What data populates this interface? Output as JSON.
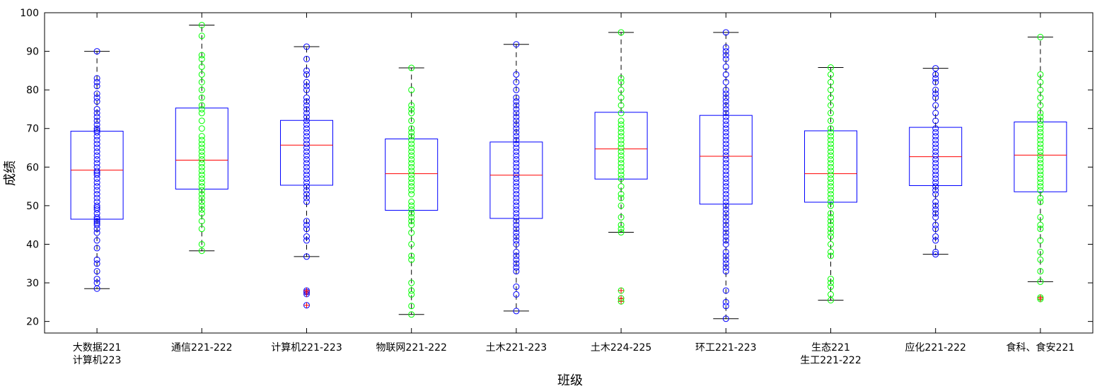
{
  "chart_data": {
    "type": "box",
    "xlabel": "班级",
    "ylabel": "成绩",
    "ylim": [
      17,
      100
    ],
    "yticks": [
      20,
      30,
      40,
      50,
      60,
      70,
      80,
      90,
      100
    ],
    "grid": false,
    "legend": "none",
    "colors": {
      "box": "#0000ff",
      "median": "#ff0000",
      "whisker": "#000000",
      "dot_a": "#0000ff",
      "dot_b": "#00ff00",
      "outlier": "#ff0000"
    },
    "categories": [
      {
        "label_lines": [
          "大数据221",
          "计算机223"
        ],
        "stats": {
          "min": 28.5,
          "q1": 46.5,
          "median": 59.2,
          "q3": 69.3,
          "max": 90
        },
        "outliers": [],
        "color": "blue",
        "scores": [
          28.5,
          30,
          31,
          33,
          35,
          36,
          39,
          41,
          43,
          44,
          45,
          45.5,
          46,
          46.5,
          47,
          48,
          49,
          49.5,
          50,
          51,
          52,
          53,
          54,
          55,
          56,
          57,
          58,
          58.5,
          59,
          60,
          61,
          62,
          63,
          64,
          65,
          66,
          67,
          68,
          69,
          69.5,
          70,
          71,
          72,
          73,
          74,
          75,
          77,
          78,
          79,
          81,
          82,
          83,
          90
        ]
      },
      {
        "label_lines": [
          "通信221-222"
        ],
        "stats": {
          "min": 38.3,
          "q1": 54.3,
          "median": 61.8,
          "q3": 75.3,
          "max": 96.8
        },
        "outliers": [],
        "color": "green",
        "scores": [
          38.3,
          40,
          44,
          46,
          48,
          49,
          50,
          51,
          52,
          53,
          54,
          55,
          56,
          57,
          58,
          59,
          60,
          61,
          62,
          63,
          64,
          65,
          66,
          67,
          68,
          70,
          72,
          74,
          75,
          76,
          78,
          80,
          82,
          84,
          86,
          88,
          89,
          94,
          96.8
        ]
      },
      {
        "label_lines": [
          "计算机221-223"
        ],
        "stats": {
          "min": 36.8,
          "q1": 55.3,
          "median": 65.7,
          "q3": 72.1,
          "max": 91.2
        },
        "outliers": [
          24.2,
          27.1,
          27.6,
          28
        ],
        "color": "blue",
        "scores": [
          36.8,
          41,
          42,
          44,
          45,
          46,
          51,
          52,
          53,
          54,
          55,
          56,
          57,
          58,
          59,
          60,
          61,
          62,
          63,
          64,
          65,
          66,
          67,
          68,
          69,
          70,
          71,
          72,
          73,
          74,
          75,
          76,
          77,
          78,
          80,
          81,
          82,
          84,
          85,
          88,
          91.2
        ]
      },
      {
        "label_lines": [
          "物联网221-222"
        ],
        "stats": {
          "min": 21.8,
          "q1": 48.8,
          "median": 58.3,
          "q3": 67.3,
          "max": 85.7
        },
        "outliers": [],
        "color": "green",
        "scores": [
          21.8,
          24,
          27,
          28,
          30,
          36,
          37,
          40,
          43,
          45,
          46,
          47,
          48,
          49,
          50,
          51,
          53,
          54,
          55,
          56,
          57,
          58,
          59,
          60,
          61,
          62,
          63,
          64,
          65,
          66,
          67,
          68,
          69,
          70,
          72,
          74,
          75,
          76,
          80,
          85.7
        ]
      },
      {
        "label_lines": [
          "土木221-223"
        ],
        "stats": {
          "min": 22.7,
          "q1": 46.7,
          "median": 57.9,
          "q3": 66.5,
          "max": 91.8
        },
        "outliers": [],
        "color": "blue",
        "scores": [
          22.7,
          27,
          29,
          33,
          34,
          35,
          36,
          37,
          38,
          40,
          41,
          42,
          43,
          44,
          45,
          46,
          47,
          48,
          49,
          50,
          51,
          52,
          53,
          54,
          55,
          56,
          57,
          58,
          59,
          60,
          61,
          62,
          63,
          64,
          65,
          66,
          67,
          68,
          69,
          70,
          71,
          72,
          73,
          74,
          75,
          76,
          77,
          78,
          80,
          82,
          84,
          91.8
        ]
      },
      {
        "label_lines": [
          "土木224-225"
        ],
        "stats": {
          "min": 43.1,
          "q1": 56.9,
          "median": 64.7,
          "q3": 74.2,
          "max": 94.9
        },
        "outliers": [
          25.2,
          26,
          28
        ],
        "color": "green",
        "scores": [
          43.1,
          44,
          45,
          47,
          50,
          52,
          53,
          55,
          57,
          58,
          59,
          60,
          61,
          62,
          63,
          64,
          65,
          66,
          67,
          68,
          69,
          70,
          71,
          72,
          74,
          76,
          78,
          80,
          82,
          83,
          94.9
        ]
      },
      {
        "label_lines": [
          "环工221-223"
        ],
        "stats": {
          "min": 20.7,
          "q1": 50.4,
          "median": 62.8,
          "q3": 73.4,
          "max": 94.9
        },
        "outliers": [],
        "color": "blue",
        "scores": [
          20.7,
          24,
          25,
          28,
          33,
          34,
          35,
          36,
          37,
          38,
          40,
          41,
          42,
          43,
          44,
          45,
          46,
          47,
          48,
          49,
          50,
          51,
          52,
          53,
          54,
          55,
          56,
          57,
          58,
          59,
          60,
          61,
          62,
          63,
          64,
          65,
          66,
          67,
          68,
          69,
          70,
          71,
          72,
          73,
          74,
          75,
          76,
          77,
          78,
          79,
          80,
          82,
          84,
          86,
          88,
          89,
          90,
          91,
          94.9
        ]
      },
      {
        "label_lines": [
          "生态221",
          "生工221-222"
        ],
        "stats": {
          "min": 25.5,
          "q1": 50.9,
          "median": 58.3,
          "q3": 69.4,
          "max": 85.8
        },
        "outliers": [],
        "color": "green",
        "scores": [
          25.5,
          27,
          29,
          30,
          31,
          37,
          38,
          40,
          42,
          43,
          44,
          45,
          46,
          47,
          48,
          50,
          51,
          52,
          53,
          54,
          55,
          56,
          57,
          58,
          59,
          60,
          61,
          62,
          63,
          64,
          65,
          66,
          67,
          68,
          69,
          70,
          72,
          74,
          76,
          78,
          80,
          82,
          84,
          85.8
        ]
      },
      {
        "label_lines": [
          "应化221-222"
        ],
        "stats": {
          "min": 37.4,
          "q1": 55.2,
          "median": 62.7,
          "q3": 70.3,
          "max": 85.6
        },
        "outliers": [],
        "color": "blue",
        "scores": [
          37.4,
          38,
          41,
          42,
          44,
          45,
          47,
          48,
          49,
          50,
          51,
          53,
          54,
          55,
          56,
          57,
          58,
          59,
          60,
          61,
          62,
          63,
          64,
          65,
          66,
          67,
          68,
          69,
          70,
          72,
          74,
          76,
          78,
          79,
          80,
          82,
          83,
          84,
          85.6
        ]
      },
      {
        "label_lines": [
          "食科、食安221"
        ],
        "stats": {
          "min": 30.3,
          "q1": 53.6,
          "median": 63.1,
          "q3": 71.7,
          "max": 93.7
        },
        "outliers": [
          25.8,
          26.2
        ],
        "color": "green",
        "scores": [
          30.3,
          33,
          36,
          38,
          41,
          44,
          45,
          47,
          51,
          52,
          54,
          55,
          56,
          57,
          58,
          59,
          60,
          61,
          62,
          63,
          64,
          65,
          66,
          67,
          68,
          69,
          70,
          71,
          72,
          73,
          74,
          76,
          78,
          80,
          82,
          84,
          93.7
        ]
      }
    ]
  }
}
